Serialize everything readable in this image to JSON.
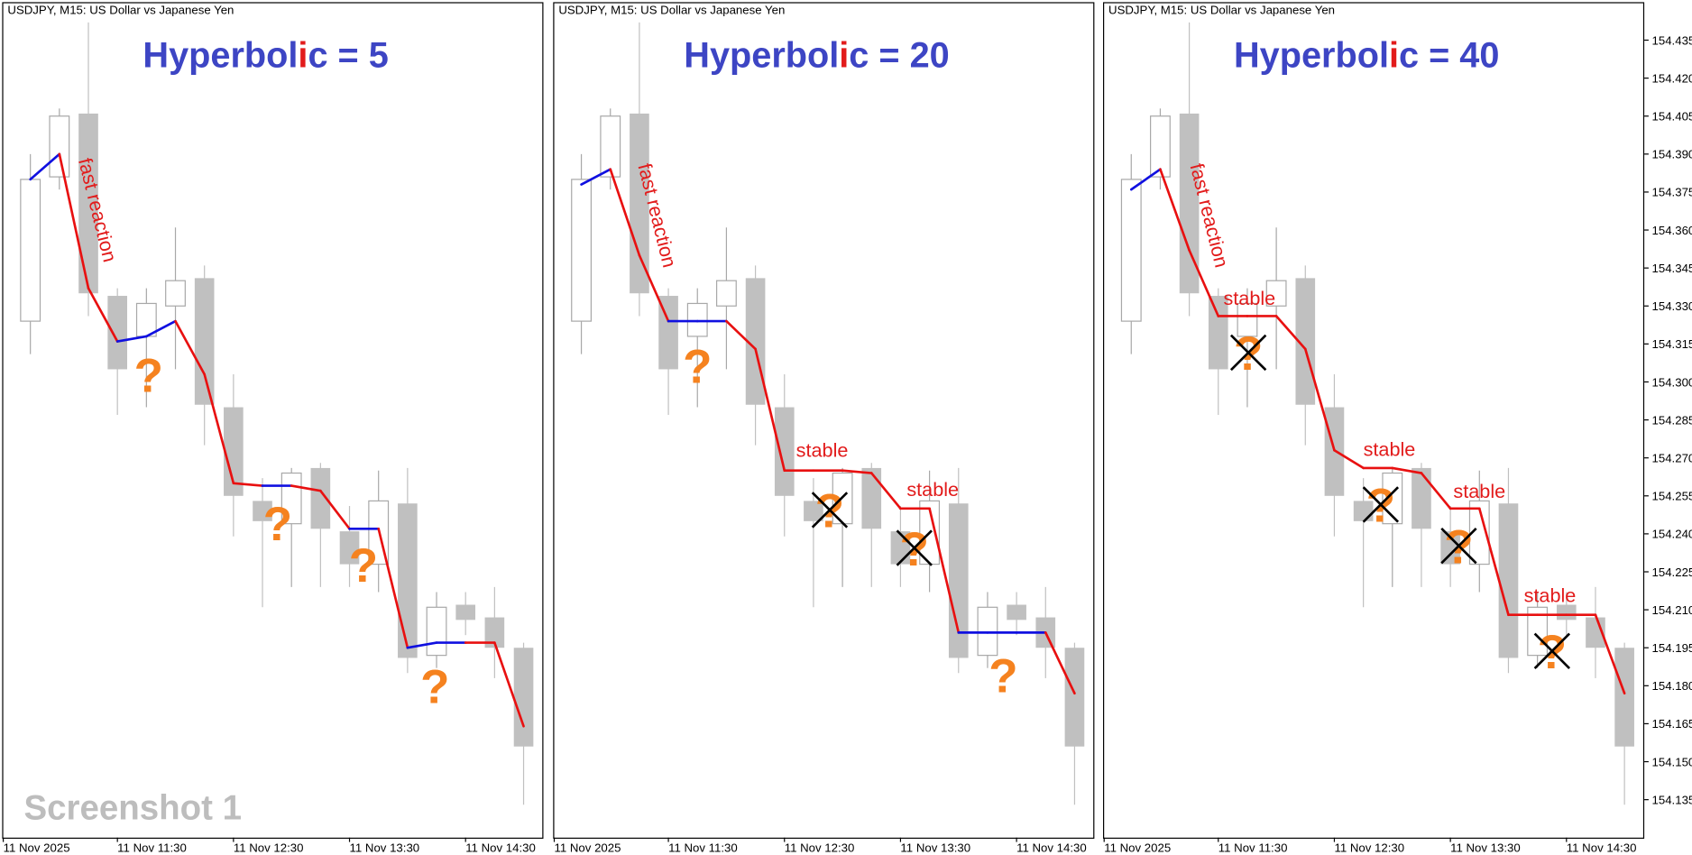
{
  "header": "USDJPY, M15:  US Dollar vs Japanese Yen",
  "watermark": "Screenshot 1",
  "xtick_labels": [
    "11 Nov 2025",
    "11 Nov 11:30",
    "11 Nov 12:30",
    "11 Nov 13:30",
    "11 Nov 14:30"
  ],
  "ylim": [
    154.12,
    154.45
  ],
  "yticks": [
    154.435,
    {
      "value": 154.42,
      "label": "154.420"
    },
    154.405,
    {
      "value": 154.39,
      "label": "154.390"
    },
    154.375,
    {
      "value": 154.36,
      "label": "154.360"
    },
    154.345,
    {
      "value": 154.33,
      "label": "154.330"
    },
    154.315,
    {
      "value": 154.3,
      "label": "154.300"
    },
    154.285,
    {
      "value": 154.27,
      "label": "154.270"
    },
    154.255,
    {
      "value": 154.24,
      "label": "154.240"
    },
    154.225,
    {
      "value": 154.21,
      "label": "154.210"
    },
    154.195,
    {
      "value": 154.18,
      "label": "154.180"
    },
    154.165,
    {
      "value": 154.15,
      "label": "154.150"
    },
    154.135
  ],
  "candles": [
    {
      "open": 154.324,
      "high": 154.39,
      "low": 154.311,
      "close": 154.38
    },
    {
      "open": 154.381,
      "high": 154.408,
      "low": 154.376,
      "close": 154.405
    },
    {
      "open": 154.406,
      "high": 154.442,
      "low": 154.326,
      "close": 154.335
    },
    {
      "open": 154.334,
      "high": 154.337,
      "low": 154.287,
      "close": 154.305
    },
    {
      "open": 154.318,
      "high": 154.337,
      "low": 154.29,
      "close": 154.331
    },
    {
      "open": 154.33,
      "high": 154.361,
      "low": 154.305,
      "close": 154.34
    },
    {
      "open": 154.341,
      "high": 154.346,
      "low": 154.275,
      "close": 154.291
    },
    {
      "open": 154.29,
      "high": 154.303,
      "low": 154.239,
      "close": 154.255
    },
    {
      "open": 154.253,
      "high": 154.262,
      "low": 154.211,
      "close": 154.245
    },
    {
      "open": 154.244,
      "high": 154.266,
      "low": 154.219,
      "close": 154.264
    },
    {
      "open": 154.266,
      "high": 154.268,
      "low": 154.219,
      "close": 154.242
    },
    {
      "open": 154.241,
      "high": 154.251,
      "low": 154.219,
      "close": 154.228
    },
    {
      "open": 154.228,
      "high": 154.265,
      "low": 154.217,
      "close": 154.253
    },
    {
      "open": 154.252,
      "high": 154.266,
      "low": 154.185,
      "close": 154.191
    },
    {
      "open": 154.192,
      "high": 154.217,
      "low": 154.187,
      "close": 154.211
    },
    {
      "open": 154.212,
      "high": 154.217,
      "low": 154.2,
      "close": 154.206
    },
    {
      "open": 154.207,
      "high": 154.219,
      "low": 154.183,
      "close": 154.195
    },
    {
      "open": 154.195,
      "high": 154.197,
      "low": 154.133,
      "close": 154.156
    }
  ],
  "panels": [
    {
      "title": [
        "Hyperbol",
        "i",
        "c = 5"
      ],
      "values": [
        154.38,
        154.39,
        154.337,
        154.316,
        154.318,
        154.324,
        154.303,
        154.26,
        154.259,
        154.259,
        154.257,
        154.242,
        154.242,
        154.195,
        154.197,
        154.197,
        154.197,
        154.164
      ],
      "segment_colors": [
        "#1010e0",
        "#e81010",
        "#e81010",
        "#1010e0",
        "#1010e0",
        "#e81010",
        "#e81010",
        "#e81010",
        "#1010e0",
        "#e81010",
        "#e81010",
        "#1010e0",
        "#e81010",
        "#1010e0",
        "#1010e0",
        "#e81010",
        "#e81010"
      ],
      "annotations": [
        "fast reaction"
      ],
      "question_marks": [
        "?",
        "?",
        "?",
        "?"
      ]
    },
    {
      "title": [
        "Hyperbol",
        "i",
        "c = 20"
      ],
      "values": [
        154.378,
        154.384,
        154.35,
        154.324,
        154.324,
        154.324,
        154.313,
        154.265,
        154.265,
        154.265,
        154.264,
        154.25,
        154.25,
        154.201,
        154.201,
        154.201,
        154.201,
        154.177
      ],
      "segment_colors": [
        "#1010e0",
        "#e81010",
        "#e81010",
        "#1010e0",
        "#1010e0",
        "#e81010",
        "#e81010",
        "#e81010",
        "#e81010",
        "#e81010",
        "#e81010",
        "#e81010",
        "#e81010",
        "#1010e0",
        "#1010e0",
        "#1010e0",
        "#e81010"
      ],
      "annotations": [
        "fast reaction",
        "stable",
        "stable"
      ],
      "question_marks": [
        "?",
        "?",
        "?",
        "?"
      ]
    },
    {
      "title": [
        "Hyperbol",
        "i",
        "c = 40"
      ],
      "values": [
        154.376,
        154.384,
        154.352,
        154.326,
        154.326,
        154.326,
        154.313,
        154.273,
        154.266,
        154.266,
        154.264,
        154.25,
        154.25,
        154.208,
        154.208,
        154.208,
        154.208,
        154.177
      ],
      "segment_colors": [
        "#1010e0",
        "#e81010",
        "#e81010",
        "#e81010",
        "#e81010",
        "#e81010",
        "#e81010",
        "#e81010",
        "#e81010",
        "#e81010",
        "#e81010",
        "#e81010",
        "#e81010",
        "#e81010",
        "#e81010",
        "#e81010",
        "#e81010"
      ],
      "annotations": [
        "fast reaction",
        "stable",
        "stable",
        "stable",
        "stable"
      ],
      "question_marks": [
        "?",
        "?",
        "?",
        "?"
      ]
    }
  ]
}
